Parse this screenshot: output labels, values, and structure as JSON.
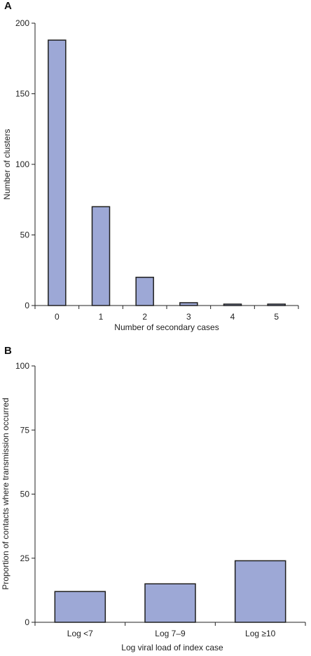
{
  "chart_data": [
    {
      "panel": "A",
      "type": "bar",
      "categories": [
        "0",
        "1",
        "2",
        "3",
        "4",
        "5"
      ],
      "values": [
        188,
        70,
        20,
        2,
        1,
        1
      ],
      "xlabel": "Number of secondary cases",
      "ylabel": "Number of clusters",
      "ylim": [
        0,
        200
      ],
      "yticks": [
        "0",
        "50",
        "100",
        "150",
        "200"
      ],
      "bar_color": "#9da8d6",
      "grid": false
    },
    {
      "panel": "B",
      "type": "bar",
      "categories": [
        "Log <7",
        "Log 7–9",
        "Log ≥10"
      ],
      "values": [
        12,
        15,
        24
      ],
      "xlabel": "Log viral load of index case",
      "ylabel": "Proportion of contacts where transmission occurred",
      "ylim": [
        0,
        100
      ],
      "yticks": [
        "0",
        "25",
        "50",
        "75",
        "100"
      ],
      "bar_color": "#9da8d6",
      "grid": false
    }
  ]
}
